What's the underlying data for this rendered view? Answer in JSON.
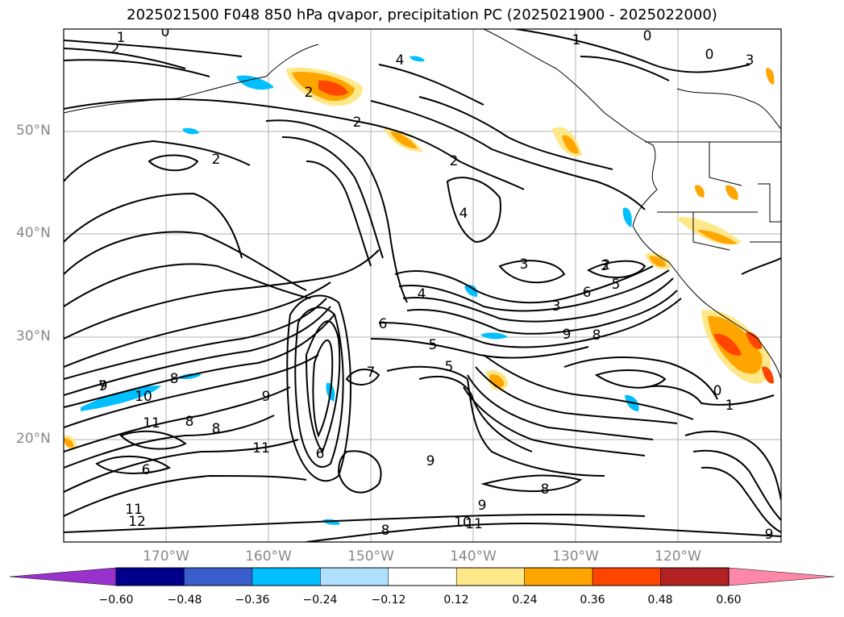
{
  "title": "2025021500 F048 850 hPa qvapor, precipitation PC (2025021900 - 2025022000)",
  "lat_labels": [
    "50°N",
    "40°N",
    "30°N",
    "20°N"
  ],
  "lon_labels": [
    "170°W",
    "160°W",
    "150°W",
    "140°W",
    "130°W",
    "120°W"
  ],
  "colorbar": {
    "ticks": [
      "−0.60",
      "−0.48",
      "−0.36",
      "−0.24",
      "−0.12",
      "0.12",
      "0.24",
      "0.36",
      "0.48",
      "0.60"
    ],
    "colors": [
      "#9932cc",
      "#00008b",
      "#3a5fcd",
      "#00bfff",
      "#b0e0ff",
      "#ffffff",
      "#ffe88a",
      "#ffa500",
      "#ff4500",
      "#b22222",
      "#ff88aa"
    ]
  },
  "contour_labels": [
    "1",
    "0",
    "2",
    "4",
    "2",
    "2",
    "1",
    "0",
    "0",
    "3",
    "2",
    "4",
    "2",
    "3",
    "4",
    "3",
    "6",
    "5",
    "3",
    "9",
    "8",
    "6",
    "5",
    "7",
    "9",
    "8",
    "10",
    "11",
    "8",
    "9",
    "6",
    "11",
    "8",
    "6",
    "12",
    "11",
    "8",
    "7",
    "10",
    "11",
    "9",
    "9",
    "8",
    "2",
    "0",
    "1",
    "5",
    "9"
  ]
}
